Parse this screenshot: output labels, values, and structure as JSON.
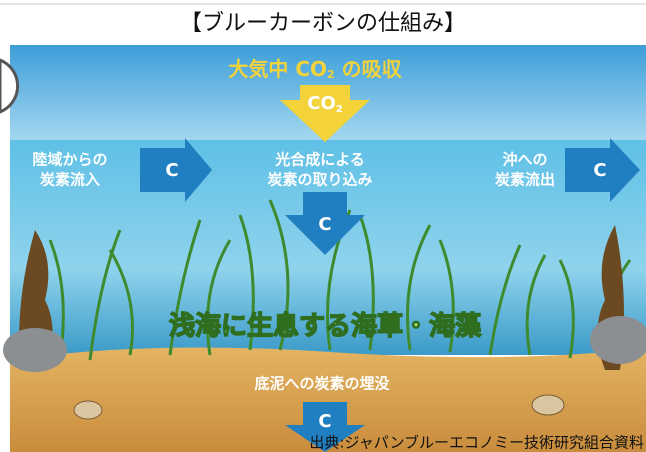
{
  "title": "【ブルーカーボンの仕組み】",
  "diagram": {
    "atmosphere_label": [
      "大気中 CO",
      "2",
      " の吸収"
    ],
    "co2_arrow": [
      "CO",
      "2"
    ],
    "inflow_label": [
      "陸域からの",
      "炭素流入"
    ],
    "inflow_arrow": "C",
    "photosynthesis_label": [
      "光合成による",
      "炭素の取り込み"
    ],
    "photosynthesis_arrow": "C",
    "outflow_label": [
      "沖への",
      "炭素流出"
    ],
    "outflow_arrow": "C",
    "seagrass_label": "浅海に生息する海草・海藻",
    "burial_label": "底泥への炭素の埋没",
    "burial_arrow": "C"
  },
  "source": "出典:ジャパンブルーエコノミー技術研究組合資料"
}
